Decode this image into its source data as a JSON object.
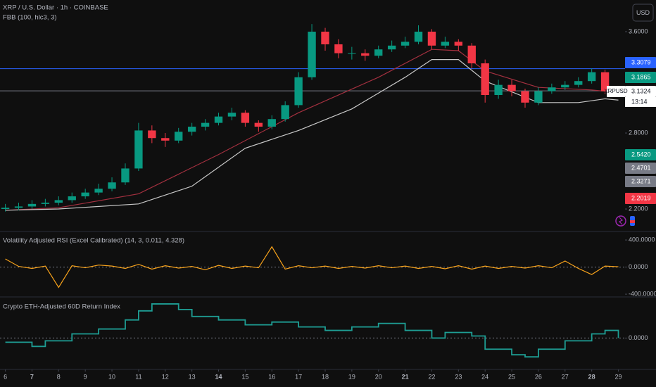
{
  "toolbar": {
    "currency": "USD"
  },
  "chart_data": [
    {
      "type": "candlestick",
      "title": "XRP / U.S. Dollar · 1h · COINBASE",
      "subtitle": "FBB (100, hlc3, 3)",
      "x": [
        6,
        6.5,
        7,
        7.5,
        8,
        8.5,
        9,
        9.5,
        10,
        10.5,
        11,
        11.5,
        12,
        12.5,
        13,
        13.5,
        14,
        14.5,
        15,
        15.5,
        16,
        16.5,
        17,
        17.5,
        18,
        18.5,
        19,
        19.5,
        20,
        20.5,
        21,
        21.5,
        22,
        22.5,
        23,
        23.5,
        24,
        24.5,
        25,
        25.5,
        26,
        26.5,
        27,
        27.5,
        28,
        28.5
      ],
      "open": [
        2.2,
        2.21,
        2.22,
        2.24,
        2.25,
        2.27,
        2.3,
        2.33,
        2.36,
        2.41,
        2.52,
        2.82,
        2.76,
        2.74,
        2.81,
        2.85,
        2.88,
        2.93,
        2.96,
        2.88,
        2.85,
        2.91,
        3.02,
        3.24,
        3.6,
        3.5,
        3.43,
        3.43,
        3.41,
        3.46,
        3.49,
        3.52,
        3.6,
        3.49,
        3.52,
        3.49,
        3.35,
        3.1,
        3.18,
        3.13,
        3.04,
        3.13,
        3.16,
        3.18,
        3.21,
        3.28
      ],
      "high": [
        2.24,
        2.25,
        2.27,
        2.28,
        2.3,
        2.33,
        2.36,
        2.4,
        2.45,
        2.56,
        2.88,
        2.86,
        2.8,
        2.84,
        2.88,
        2.91,
        2.96,
        3.0,
        2.98,
        2.9,
        2.94,
        3.05,
        3.28,
        3.66,
        3.63,
        3.54,
        3.48,
        3.46,
        3.49,
        3.53,
        3.56,
        3.65,
        3.62,
        3.56,
        3.54,
        3.51,
        3.38,
        3.22,
        3.22,
        3.15,
        3.16,
        3.19,
        3.21,
        3.24,
        3.31,
        3.3
      ],
      "low": [
        2.18,
        2.19,
        2.2,
        2.22,
        2.23,
        2.25,
        2.28,
        2.31,
        2.34,
        2.39,
        2.5,
        2.72,
        2.69,
        2.72,
        2.78,
        2.82,
        2.86,
        2.9,
        2.85,
        2.81,
        2.83,
        2.89,
        3.0,
        3.22,
        3.45,
        3.39,
        3.38,
        3.37,
        3.39,
        3.44,
        3.47,
        3.5,
        3.46,
        3.47,
        3.45,
        3.31,
        3.04,
        3.07,
        3.09,
        3.0,
        3.02,
        3.11,
        3.14,
        3.16,
        3.19,
        3.11
      ],
      "close": [
        2.21,
        2.22,
        2.24,
        2.25,
        2.27,
        2.3,
        2.33,
        2.36,
        2.41,
        2.52,
        2.82,
        2.76,
        2.74,
        2.81,
        2.85,
        2.88,
        2.93,
        2.96,
        2.88,
        2.85,
        2.91,
        3.02,
        3.24,
        3.6,
        3.5,
        3.43,
        3.43,
        3.41,
        3.46,
        3.49,
        3.52,
        3.6,
        3.49,
        3.52,
        3.49,
        3.35,
        3.1,
        3.18,
        3.13,
        3.04,
        3.13,
        3.16,
        3.18,
        3.21,
        3.28,
        3.13
      ],
      "up_color": "#089981",
      "down_color": "#f23645",
      "lines": [
        {
          "color": "#a3303f",
          "x": [
            6,
            8,
            11,
            14,
            17,
            20,
            22,
            23,
            24,
            26,
            28,
            29
          ],
          "values": [
            2.19,
            2.21,
            2.32,
            2.63,
            2.96,
            3.24,
            3.46,
            3.45,
            3.29,
            3.16,
            3.14,
            3.12
          ]
        },
        {
          "color": "#c8c8c8",
          "x": [
            6,
            8,
            11,
            13,
            15,
            17,
            19,
            21,
            22,
            23,
            24,
            26,
            27.5,
            28.5,
            29
          ],
          "values": [
            2.19,
            2.2,
            2.24,
            2.38,
            2.68,
            2.82,
            2.99,
            3.24,
            3.38,
            3.38,
            3.21,
            3.04,
            3.04,
            3.07,
            3.06
          ]
        }
      ],
      "hlines": [
        {
          "value": 3.3079,
          "color": "#2962ff"
        },
        {
          "value": 3.1324,
          "color": "#787b86"
        }
      ],
      "price_labels": [
        {
          "value": 3.3079,
          "label": "3.3079",
          "color": "#2962ff"
        },
        {
          "value": 3.1865,
          "label": "3.1865",
          "color": "#089981"
        },
        {
          "value": 3.1324,
          "label": "3.1324",
          "color": "#ffffff",
          "symbol": "XRPUSD",
          "countdown": "13:14"
        },
        {
          "value": 2.542,
          "label": "2.5420",
          "color": "#089981"
        },
        {
          "value": 2.4701,
          "label": "2.4701",
          "color": "#787b86"
        },
        {
          "value": 2.3271,
          "label": "2.3271",
          "color": "#787b86"
        },
        {
          "value": 2.2019,
          "label": "2.2019",
          "color": "#f23645"
        }
      ],
      "xlim": [
        5.8,
        29.25
      ],
      "ylim": [
        2.028,
        3.85
      ],
      "yticks": [
        {
          "value": 2.2,
          "label": "2.2000"
        },
        {
          "value": 2.8,
          "label": "2.8000"
        },
        {
          "value": 3.6,
          "label": "3.6000"
        }
      ]
    },
    {
      "type": "line",
      "title": "Volatility Adjusted RSI (Excel Calibrated) (14, 3, 0.011, 4.328)",
      "x": [
        6,
        6.5,
        7,
        7.5,
        8,
        8.5,
        9,
        9.5,
        10,
        10.5,
        11,
        11.5,
        12,
        12.5,
        13,
        13.5,
        14,
        14.5,
        15,
        15.5,
        16,
        16.5,
        17,
        17.5,
        18,
        18.5,
        19,
        19.5,
        20,
        20.5,
        21,
        21.5,
        22,
        22.5,
        23,
        23.5,
        24,
        24.5,
        25,
        25.5,
        26,
        26.5,
        27,
        27.5,
        28,
        28.5,
        29
      ],
      "values": [
        120,
        10,
        -20,
        15,
        -300,
        20,
        -10,
        30,
        15,
        -20,
        40,
        -30,
        20,
        -15,
        10,
        -40,
        25,
        -20,
        15,
        -10,
        300,
        -30,
        20,
        -10,
        15,
        -20,
        10,
        -15,
        20,
        -10,
        15,
        -20,
        10,
        -25,
        20,
        -30,
        15,
        -20,
        10,
        -15,
        20,
        -10,
        90,
        -20,
        -110,
        15,
        5
      ],
      "color": "#f7a21b",
      "xlim": [
        5.8,
        29.25
      ],
      "ylim": [
        -420,
        515
      ],
      "yticks": [
        {
          "value": 400,
          "label": "400.0000"
        },
        {
          "value": 0,
          "label": "0.0000"
        },
        {
          "value": -400,
          "label": "-400.0000"
        }
      ],
      "zero_line": true
    },
    {
      "type": "step",
      "title": "Crypto ETH-Adjusted 60D Return Index",
      "x": [
        6,
        6.5,
        7,
        7.5,
        8,
        8.5,
        9,
        9.5,
        10,
        10.5,
        11,
        11.5,
        12,
        12.5,
        13,
        13.5,
        14,
        14.5,
        15,
        15.5,
        16,
        16.5,
        17,
        17.5,
        18,
        18.5,
        19,
        19.5,
        20,
        20.5,
        21,
        21.5,
        22,
        22.5,
        23,
        23.5,
        24,
        24.5,
        25,
        25.5,
        26,
        26.5,
        27,
        27.5,
        28,
        28.5,
        29
      ],
      "values": [
        -6,
        -6,
        -12,
        -4,
        -4,
        6,
        6,
        13,
        13,
        26,
        39,
        49,
        49,
        41,
        31,
        31,
        26,
        26,
        19,
        19,
        23,
        23,
        16,
        16,
        11,
        11,
        16,
        16,
        21,
        21,
        11,
        11,
        0,
        8,
        8,
        3,
        -16,
        -16,
        -24,
        -27,
        -16,
        -16,
        -4,
        -4,
        6,
        11,
        0
      ],
      "color": "#1e9e94",
      "xlim": [
        5.8,
        29.25
      ],
      "ylim": [
        -44,
        57
      ],
      "yticks": [
        {
          "value": 0,
          "label": "0.0000"
        }
      ],
      "xticks": [
        6,
        7,
        8,
        9,
        10,
        11,
        12,
        13,
        14,
        15,
        16,
        17,
        18,
        19,
        20,
        21,
        22,
        23,
        24,
        25,
        26,
        27,
        28,
        29
      ],
      "zero_line": true
    }
  ]
}
